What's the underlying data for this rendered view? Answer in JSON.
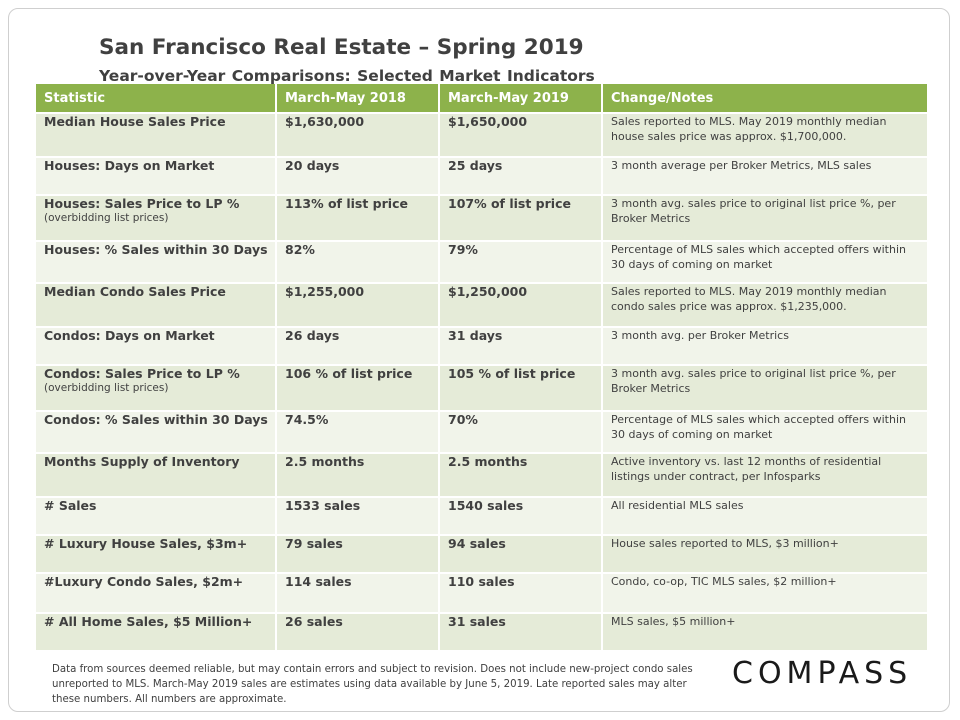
{
  "header": {
    "title": "San Francisco Real Estate – Spring 2019",
    "subtitle": "Year-over-Year Comparisons: Selected Market Indicators"
  },
  "table": {
    "columns": [
      "Statistic",
      "March-May 2018",
      "March-May 2019",
      "Change/Notes"
    ],
    "rows": [
      {
        "stat": "Median House Sales Price",
        "stat_sub": "",
        "y2018": "$1,630,000",
        "y2019": "$1,650,000",
        "note": "Sales reported to MLS. May 2019 monthly median house sales price was approx. $1,700,000."
      },
      {
        "stat": "Houses: Days on Market",
        "stat_sub": "",
        "y2018": "20 days",
        "y2019": "25 days",
        "note": "3 month average per Broker Metrics, MLS sales"
      },
      {
        "stat": "Houses: Sales Price to LP %",
        "stat_sub": "(overbidding list prices)",
        "y2018": "113% of list price",
        "y2019": "107% of list price",
        "note": "3 month avg. sales price to original list price %, per Broker Metrics"
      },
      {
        "stat": "Houses: % Sales within 30 Days",
        "stat_sub": "",
        "y2018": "82%",
        "y2019": "79%",
        "note": "Percentage of MLS sales which accepted offers within 30 days of coming on market"
      },
      {
        "stat": "Median Condo Sales Price",
        "stat_sub": "",
        "y2018": "$1,255,000",
        "y2019": "$1,250,000",
        "note": "Sales reported to MLS. May 2019 monthly median condo sales price was approx. $1,235,000."
      },
      {
        "stat": "Condos: Days on Market",
        "stat_sub": "",
        "y2018": "26 days",
        "y2019": "31 days",
        "note": "3 month avg. per Broker Metrics"
      },
      {
        "stat": "Condos: Sales Price to LP %",
        "stat_sub": "(overbidding list prices)",
        "y2018": "106 % of list price",
        "y2019": "105 % of list price",
        "note": "3 month avg. sales price to original list price %, per Broker Metrics"
      },
      {
        "stat": "Condos: % Sales within 30 Days",
        "stat_sub": "",
        "y2018": "74.5%",
        "y2019": "70%",
        "note": "Percentage of MLS sales which accepted offers within 30 days of coming on market"
      },
      {
        "stat": "Months Supply of Inventory",
        "stat_sub": "",
        "y2018": "2.5 months",
        "y2019": "2.5 months",
        "note": "Active inventory vs. last 12 months of residential listings under contract, per Infosparks"
      },
      {
        "stat": "# Sales",
        "stat_sub": "",
        "y2018": "1533 sales",
        "y2019": "1540 sales",
        "note": "All residential MLS sales"
      },
      {
        "stat": "# Luxury House Sales, $3m+",
        "stat_sub": "",
        "y2018": "79 sales",
        "y2019": "94 sales",
        "note": "House sales reported to MLS, $3 million+"
      },
      {
        "stat": "#Luxury Condo Sales, $2m+",
        "stat_sub": "",
        "y2018": "114 sales",
        "y2019": "110 sales",
        "note": "Condo, co-op, TIC MLS sales, $2 million+"
      },
      {
        "stat": "# All Home Sales, $5 Million+",
        "stat_sub": "",
        "y2018": "26 sales",
        "y2019": "31 sales",
        "note": "MLS sales, $5 million+"
      }
    ]
  },
  "footnote": "Data from sources deemed reliable, but may contain errors and subject to revision. Does not include new-project condo sales unreported to MLS. March-May 2019 sales are estimates using data available by June 5, 2019. Late reported sales may alter these numbers. All numbers are approximate.",
  "logo": {
    "text": "COMPASS"
  },
  "colors": {
    "header_green": "#8db24b",
    "row_dark": "#e5ebd8",
    "row_light": "#f1f4ea"
  }
}
